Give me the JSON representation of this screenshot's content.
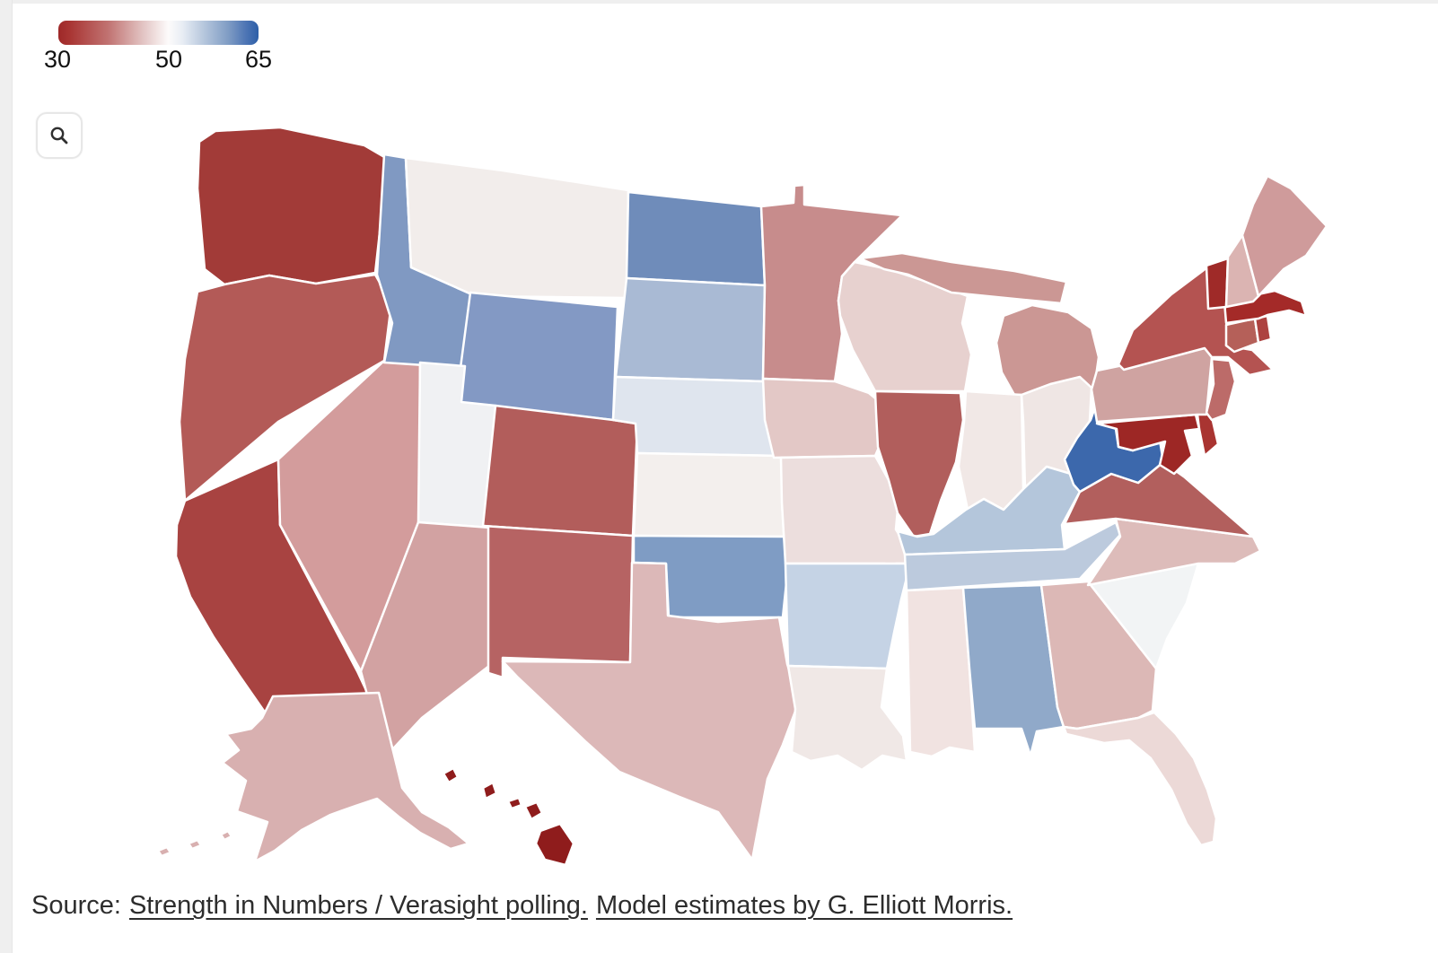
{
  "page": {
    "background": "#ffffff",
    "edge_strip_color": "#efefef"
  },
  "legend": {
    "min_label": "30",
    "mid_label": "50",
    "max_label": "65",
    "gradient_left_color": "#9e2828",
    "gradient_mid_color": "#fdfbfb",
    "gradient_right_color": "#2d5fa8"
  },
  "toolbar": {
    "zoom_button_icon": "magnifier"
  },
  "source": {
    "prefix": "Source:",
    "link1": "Strength in Numbers / Verasight polling.",
    "link2": "Model estimates by G. Elliott Morris."
  },
  "chart_data": {
    "type": "heatmap",
    "subtype": "us-state-choropleth",
    "region": "United States",
    "colorbar": {
      "min": 30,
      "mid": 50,
      "max": 65,
      "min_color": "#9e2828",
      "mid_color": "#ffffff",
      "max_color": "#2d5fa8",
      "orientation": "horizontal",
      "position": "top-left"
    },
    "states": {
      "WA": {
        "name": "Washington",
        "fill": "#a23b38",
        "value_estimate": 36
      },
      "OR": {
        "name": "Oregon",
        "fill": "#b35a57",
        "value_estimate": 40
      },
      "CA": {
        "name": "California",
        "fill": "#a84341",
        "value_estimate": 37
      },
      "NV": {
        "name": "Nevada",
        "fill": "#d39c9c",
        "value_estimate": 44
      },
      "ID": {
        "name": "Idaho",
        "fill": "#8099c2",
        "value_estimate": 57
      },
      "MT": {
        "name": "Montana",
        "fill": "#f2edeb",
        "value_estimate": 49
      },
      "WY": {
        "name": "Wyoming",
        "fill": "#8399c4",
        "value_estimate": 57
      },
      "UT": {
        "name": "Utah",
        "fill": "#f0f1f3",
        "value_estimate": 50
      },
      "CO": {
        "name": "Colorado",
        "fill": "#b25d5b",
        "value_estimate": 40
      },
      "AZ": {
        "name": "Arizona",
        "fill": "#d2a2a2",
        "value_estimate": 44
      },
      "NM": {
        "name": "New Mexico",
        "fill": "#b66363",
        "value_estimate": 41
      },
      "ND": {
        "name": "North Dakota",
        "fill": "#6f8cba",
        "value_estimate": 58
      },
      "SD": {
        "name": "South Dakota",
        "fill": "#a9bad4",
        "value_estimate": 55
      },
      "NE": {
        "name": "Nebraska",
        "fill": "#dfe5ee",
        "value_estimate": 52
      },
      "KS": {
        "name": "Kansas",
        "fill": "#f3efed",
        "value_estimate": 50
      },
      "OK": {
        "name": "Oklahoma",
        "fill": "#7f9cc4",
        "value_estimate": 57
      },
      "TX": {
        "name": "Texas",
        "fill": "#dcb8b8",
        "value_estimate": 45
      },
      "MN": {
        "name": "Minnesota",
        "fill": "#c78c8c",
        "value_estimate": 43
      },
      "IA": {
        "name": "Iowa",
        "fill": "#e3c8c6",
        "value_estimate": 46
      },
      "MO": {
        "name": "Missouri",
        "fill": "#ecdedd",
        "value_estimate": 48
      },
      "AR": {
        "name": "Arkansas",
        "fill": "#c5d3e5",
        "value_estimate": 53
      },
      "LA": {
        "name": "Louisiana",
        "fill": "#f0e8e6",
        "value_estimate": 49
      },
      "WI": {
        "name": "Wisconsin",
        "fill": "#e7d1cf",
        "value_estimate": 47
      },
      "IL": {
        "name": "Illinois",
        "fill": "#b15e5c",
        "value_estimate": 40
      },
      "MI": {
        "name": "Michigan",
        "fill": "#cb9794",
        "value_estimate": 44
      },
      "IN": {
        "name": "Indiana",
        "fill": "#f1e8e6",
        "value_estimate": 49
      },
      "OH": {
        "name": "Ohio",
        "fill": "#efe6e4",
        "value_estimate": 49
      },
      "KY": {
        "name": "Kentucky",
        "fill": "#b4c6db",
        "value_estimate": 54
      },
      "TN": {
        "name": "Tennessee",
        "fill": "#bccadd",
        "value_estimate": 54
      },
      "MS": {
        "name": "Mississippi",
        "fill": "#f1e3e1",
        "value_estimate": 48
      },
      "AL": {
        "name": "Alabama",
        "fill": "#90a9c9",
        "value_estimate": 56
      },
      "GA": {
        "name": "Georgia",
        "fill": "#dcb8b6",
        "value_estimate": 46
      },
      "FL": {
        "name": "Florida",
        "fill": "#ecd9d7",
        "value_estimate": 47
      },
      "SC": {
        "name": "South Carolina",
        "fill": "#f2f4f5",
        "value_estimate": 50
      },
      "NC": {
        "name": "North Carolina",
        "fill": "#ddbcba",
        "value_estimate": 46
      },
      "VA": {
        "name": "Virginia",
        "fill": "#b25f5d",
        "value_estimate": 40
      },
      "WV": {
        "name": "West Virginia",
        "fill": "#3c68ac",
        "value_estimate": 62
      },
      "MD": {
        "name": "Maryland",
        "fill": "#9d2725",
        "value_estimate": 33
      },
      "DE": {
        "name": "Delaware",
        "fill": "#a93431",
        "value_estimate": 35
      },
      "NJ": {
        "name": "New Jersey",
        "fill": "#bc6b69",
        "value_estimate": 41
      },
      "PA": {
        "name": "Pennsylvania",
        "fill": "#cfa3a1",
        "value_estimate": 44
      },
      "NY": {
        "name": "New York",
        "fill": "#b45351",
        "value_estimate": 39
      },
      "CT": {
        "name": "Connecticut",
        "fill": "#b56059",
        "value_estimate": 39
      },
      "RI": {
        "name": "Rhode Island",
        "fill": "#ad4240",
        "value_estimate": 36
      },
      "MA": {
        "name": "Massachusetts",
        "fill": "#a42a28",
        "value_estimate": 33
      },
      "VT": {
        "name": "Vermont",
        "fill": "#9f2a28",
        "value_estimate": 33
      },
      "NH": {
        "name": "New Hampshire",
        "fill": "#dbb4b2",
        "value_estimate": 46
      },
      "ME": {
        "name": "Maine",
        "fill": "#cf9b9b",
        "value_estimate": 44
      },
      "AK": {
        "name": "Alaska",
        "fill": "#d8b0b0",
        "value_estimate": 45
      },
      "HI": {
        "name": "Hawaii",
        "fill": "#8f1c1c",
        "value_estimate": 31
      }
    }
  }
}
